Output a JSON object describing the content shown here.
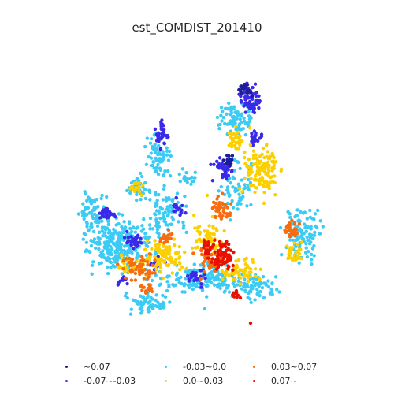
{
  "title": "est_COMDIST_201410",
  "legend": [
    {
      "label": "~0.07",
      "color": "#1c1c9c"
    },
    {
      "label": "-0.07~-0.03",
      "color": "#3a2ae8"
    },
    {
      "label": "-0.03~0.0",
      "color": "#3ccbf4"
    },
    {
      "label": "0.0~0.03",
      "color": "#fcd000"
    },
    {
      "label": "0.03~0.07",
      "color": "#f86c10"
    },
    {
      "label": "0.07~",
      "color": "#e81000"
    }
  ]
}
